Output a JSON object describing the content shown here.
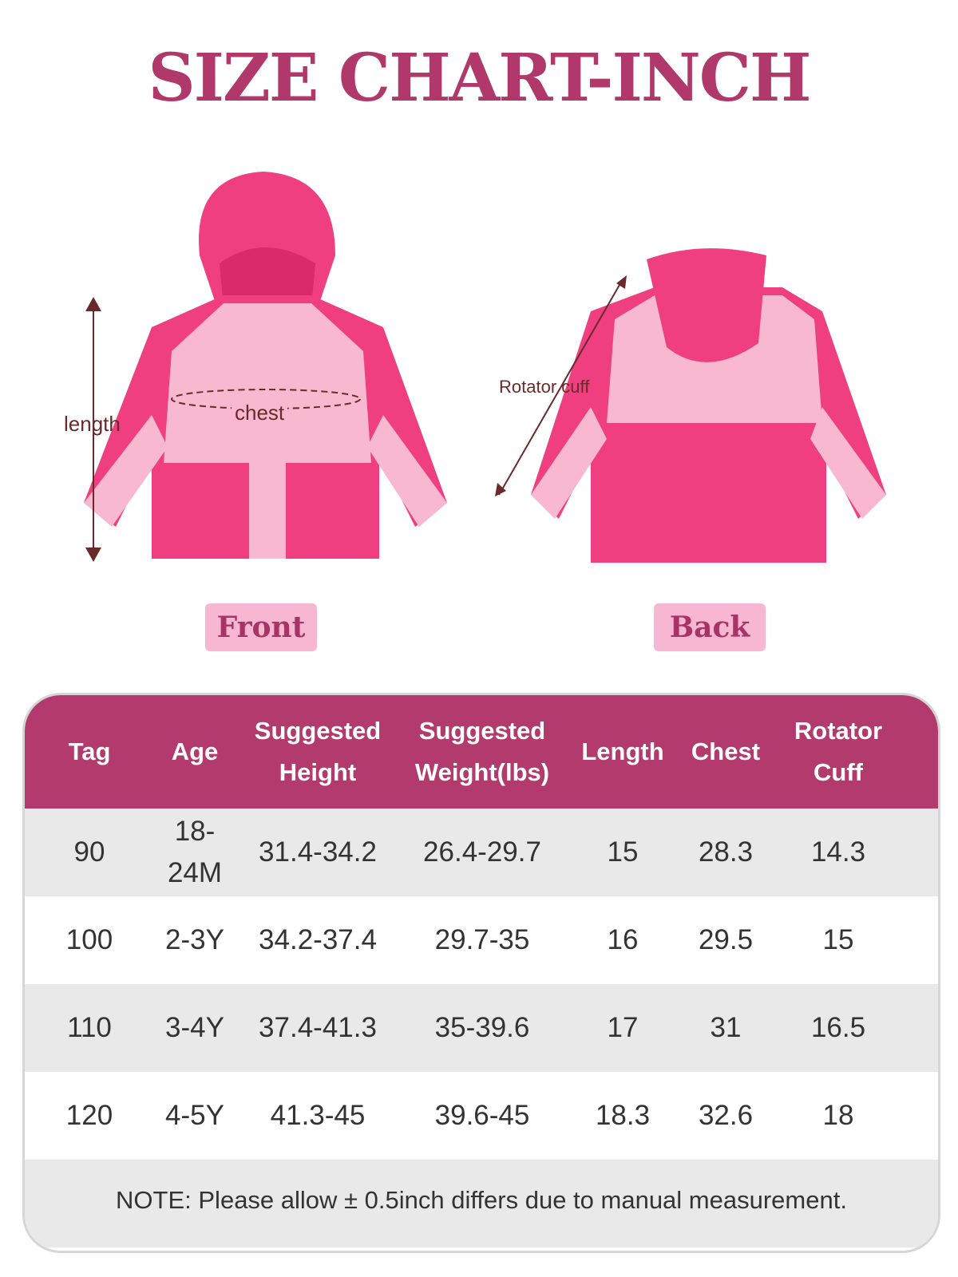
{
  "title": "SIZE CHART-INCH",
  "figures": {
    "front_label": "Front",
    "back_label": "Back",
    "length_label": "length",
    "chest_label": "chest",
    "rotator_cuff_label": "Rotator cuff"
  },
  "colors": {
    "brand": "#b23a6d",
    "jacket_dark": "#f03f80",
    "jacket_light": "#f8b8cf",
    "chip": "#f7b6d2"
  },
  "table": {
    "headers": [
      "Tag",
      "Age",
      "Suggested Height",
      "Suggested Weight(lbs)",
      "Length",
      "Chest",
      "Rotator Cuff"
    ],
    "header_lines": [
      [
        "Tag"
      ],
      [
        "Age"
      ],
      [
        "Suggested",
        "Height"
      ],
      [
        "Suggested",
        "Weight(lbs)"
      ],
      [
        "Length"
      ],
      [
        "Chest"
      ],
      [
        "Rotator",
        "Cuff"
      ]
    ],
    "rows": [
      [
        "90",
        "18-24M",
        "31.4-34.2",
        "26.4-29.7",
        "15",
        "28.3",
        "14.3"
      ],
      [
        "100",
        "2-3Y",
        "34.2-37.4",
        "29.7-35",
        "16",
        "29.5",
        "15"
      ],
      [
        "110",
        "3-4Y",
        "37.4-41.3",
        "35-39.6",
        "17",
        "31",
        "16.5"
      ],
      [
        "120",
        "4-5Y",
        "41.3-45",
        "39.6-45",
        "18.3",
        "32.6",
        "18"
      ]
    ],
    "note": "NOTE: Please allow ± 0.5inch differs due to manual measurement."
  }
}
